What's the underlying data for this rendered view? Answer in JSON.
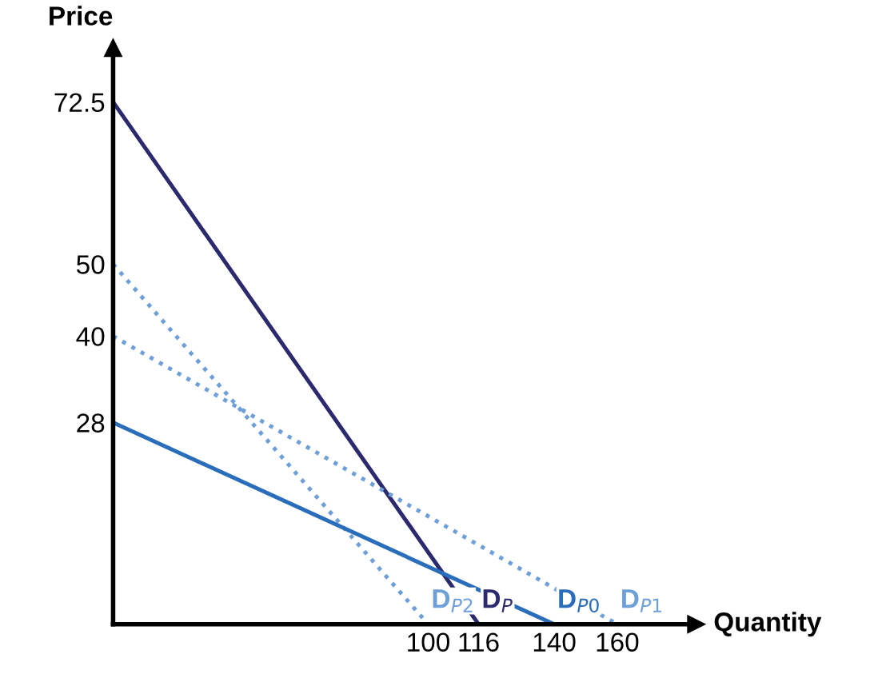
{
  "chart_data": {
    "type": "line",
    "xlabel": "Quantity",
    "ylabel": "Price",
    "xlim": [
      0,
      185
    ],
    "ylim": [
      0,
      80
    ],
    "xticks": [
      100,
      116,
      140,
      160
    ],
    "yticks": [
      28,
      40,
      50,
      72.5
    ],
    "grid": false,
    "legend": false,
    "marker": "none",
    "series": [
      {
        "name": "D$_{P2}$",
        "color": "#6f9fd8",
        "line_style": "dotted",
        "x": [
          0,
          100
        ],
        "values": [
          50,
          0
        ]
      },
      {
        "name": "D$_{P}$",
        "color": "#2b2a6e",
        "line_style": "solid",
        "x": [
          0,
          116
        ],
        "values": [
          72.5,
          0
        ]
      },
      {
        "name": "D$_{P0}$",
        "color": "#2a6ebb",
        "line_style": "solid",
        "x": [
          0,
          140
        ],
        "values": [
          28,
          0
        ]
      },
      {
        "name": "D$_{P1}$",
        "color": "#6f9fd8",
        "line_style": "dotted",
        "x": [
          0,
          160
        ],
        "values": [
          40,
          0
        ]
      }
    ]
  }
}
